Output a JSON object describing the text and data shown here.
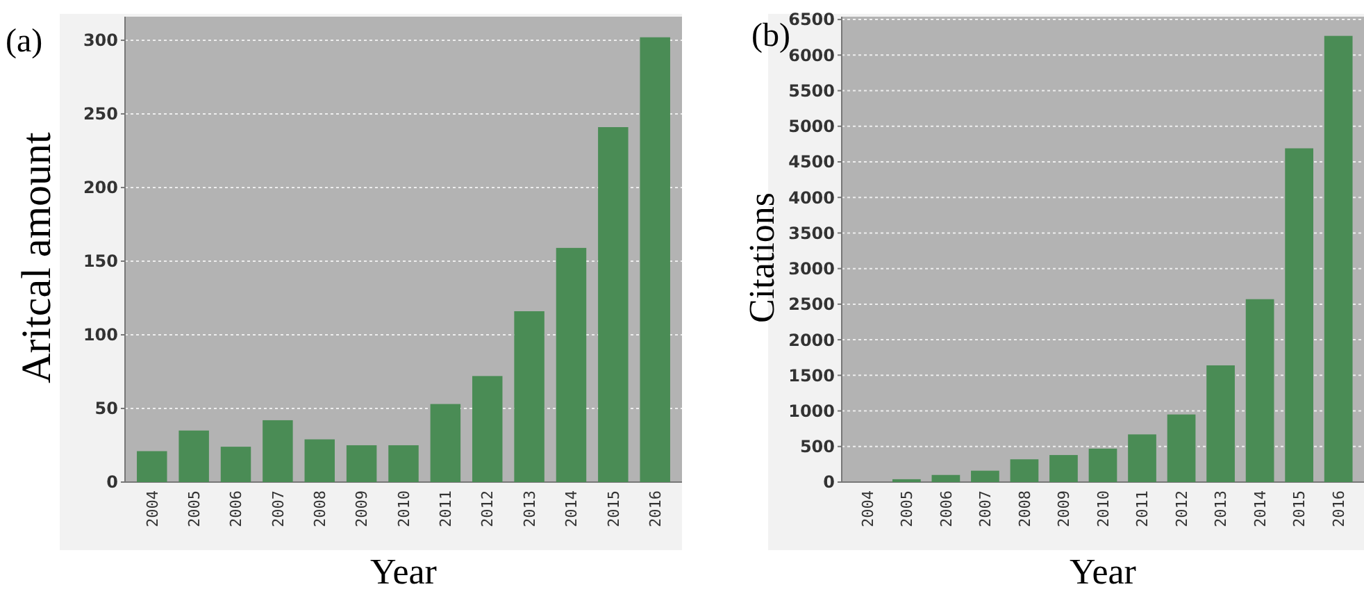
{
  "chart_data": [
    {
      "type": "bar",
      "title": "(a)",
      "xlabel": "Year",
      "ylabel": "Aritcal amount",
      "categories": [
        "2004",
        "2005",
        "2006",
        "2007",
        "2008",
        "2009",
        "2010",
        "2011",
        "2012",
        "2013",
        "2014",
        "2015",
        "2016"
      ],
      "values": [
        21,
        35,
        24,
        42,
        29,
        25,
        25,
        53,
        72,
        116,
        159,
        241,
        302
      ],
      "color": "#4a8c55",
      "ylim": [
        0,
        316
      ],
      "yticks": [
        0,
        50,
        100,
        150,
        200,
        250,
        300
      ],
      "grid": "y"
    },
    {
      "type": "bar",
      "title": "(b)",
      "xlabel": "Year",
      "ylabel": "Citations",
      "categories": [
        "2004",
        "2005",
        "2006",
        "2007",
        "2008",
        "2009",
        "2010",
        "2011",
        "2012",
        "2013",
        "2014",
        "2015",
        "2016"
      ],
      "values": [
        null,
        40,
        100,
        160,
        320,
        380,
        470,
        670,
        950,
        1640,
        2570,
        4690,
        6270
      ],
      "color": "#4a8c55",
      "ylim": [
        0,
        6540
      ],
      "yticks": [
        0,
        500,
        1000,
        1500,
        2000,
        2500,
        3000,
        3500,
        4000,
        4500,
        5000,
        5500,
        6000,
        6500
      ],
      "grid": "y"
    }
  ]
}
